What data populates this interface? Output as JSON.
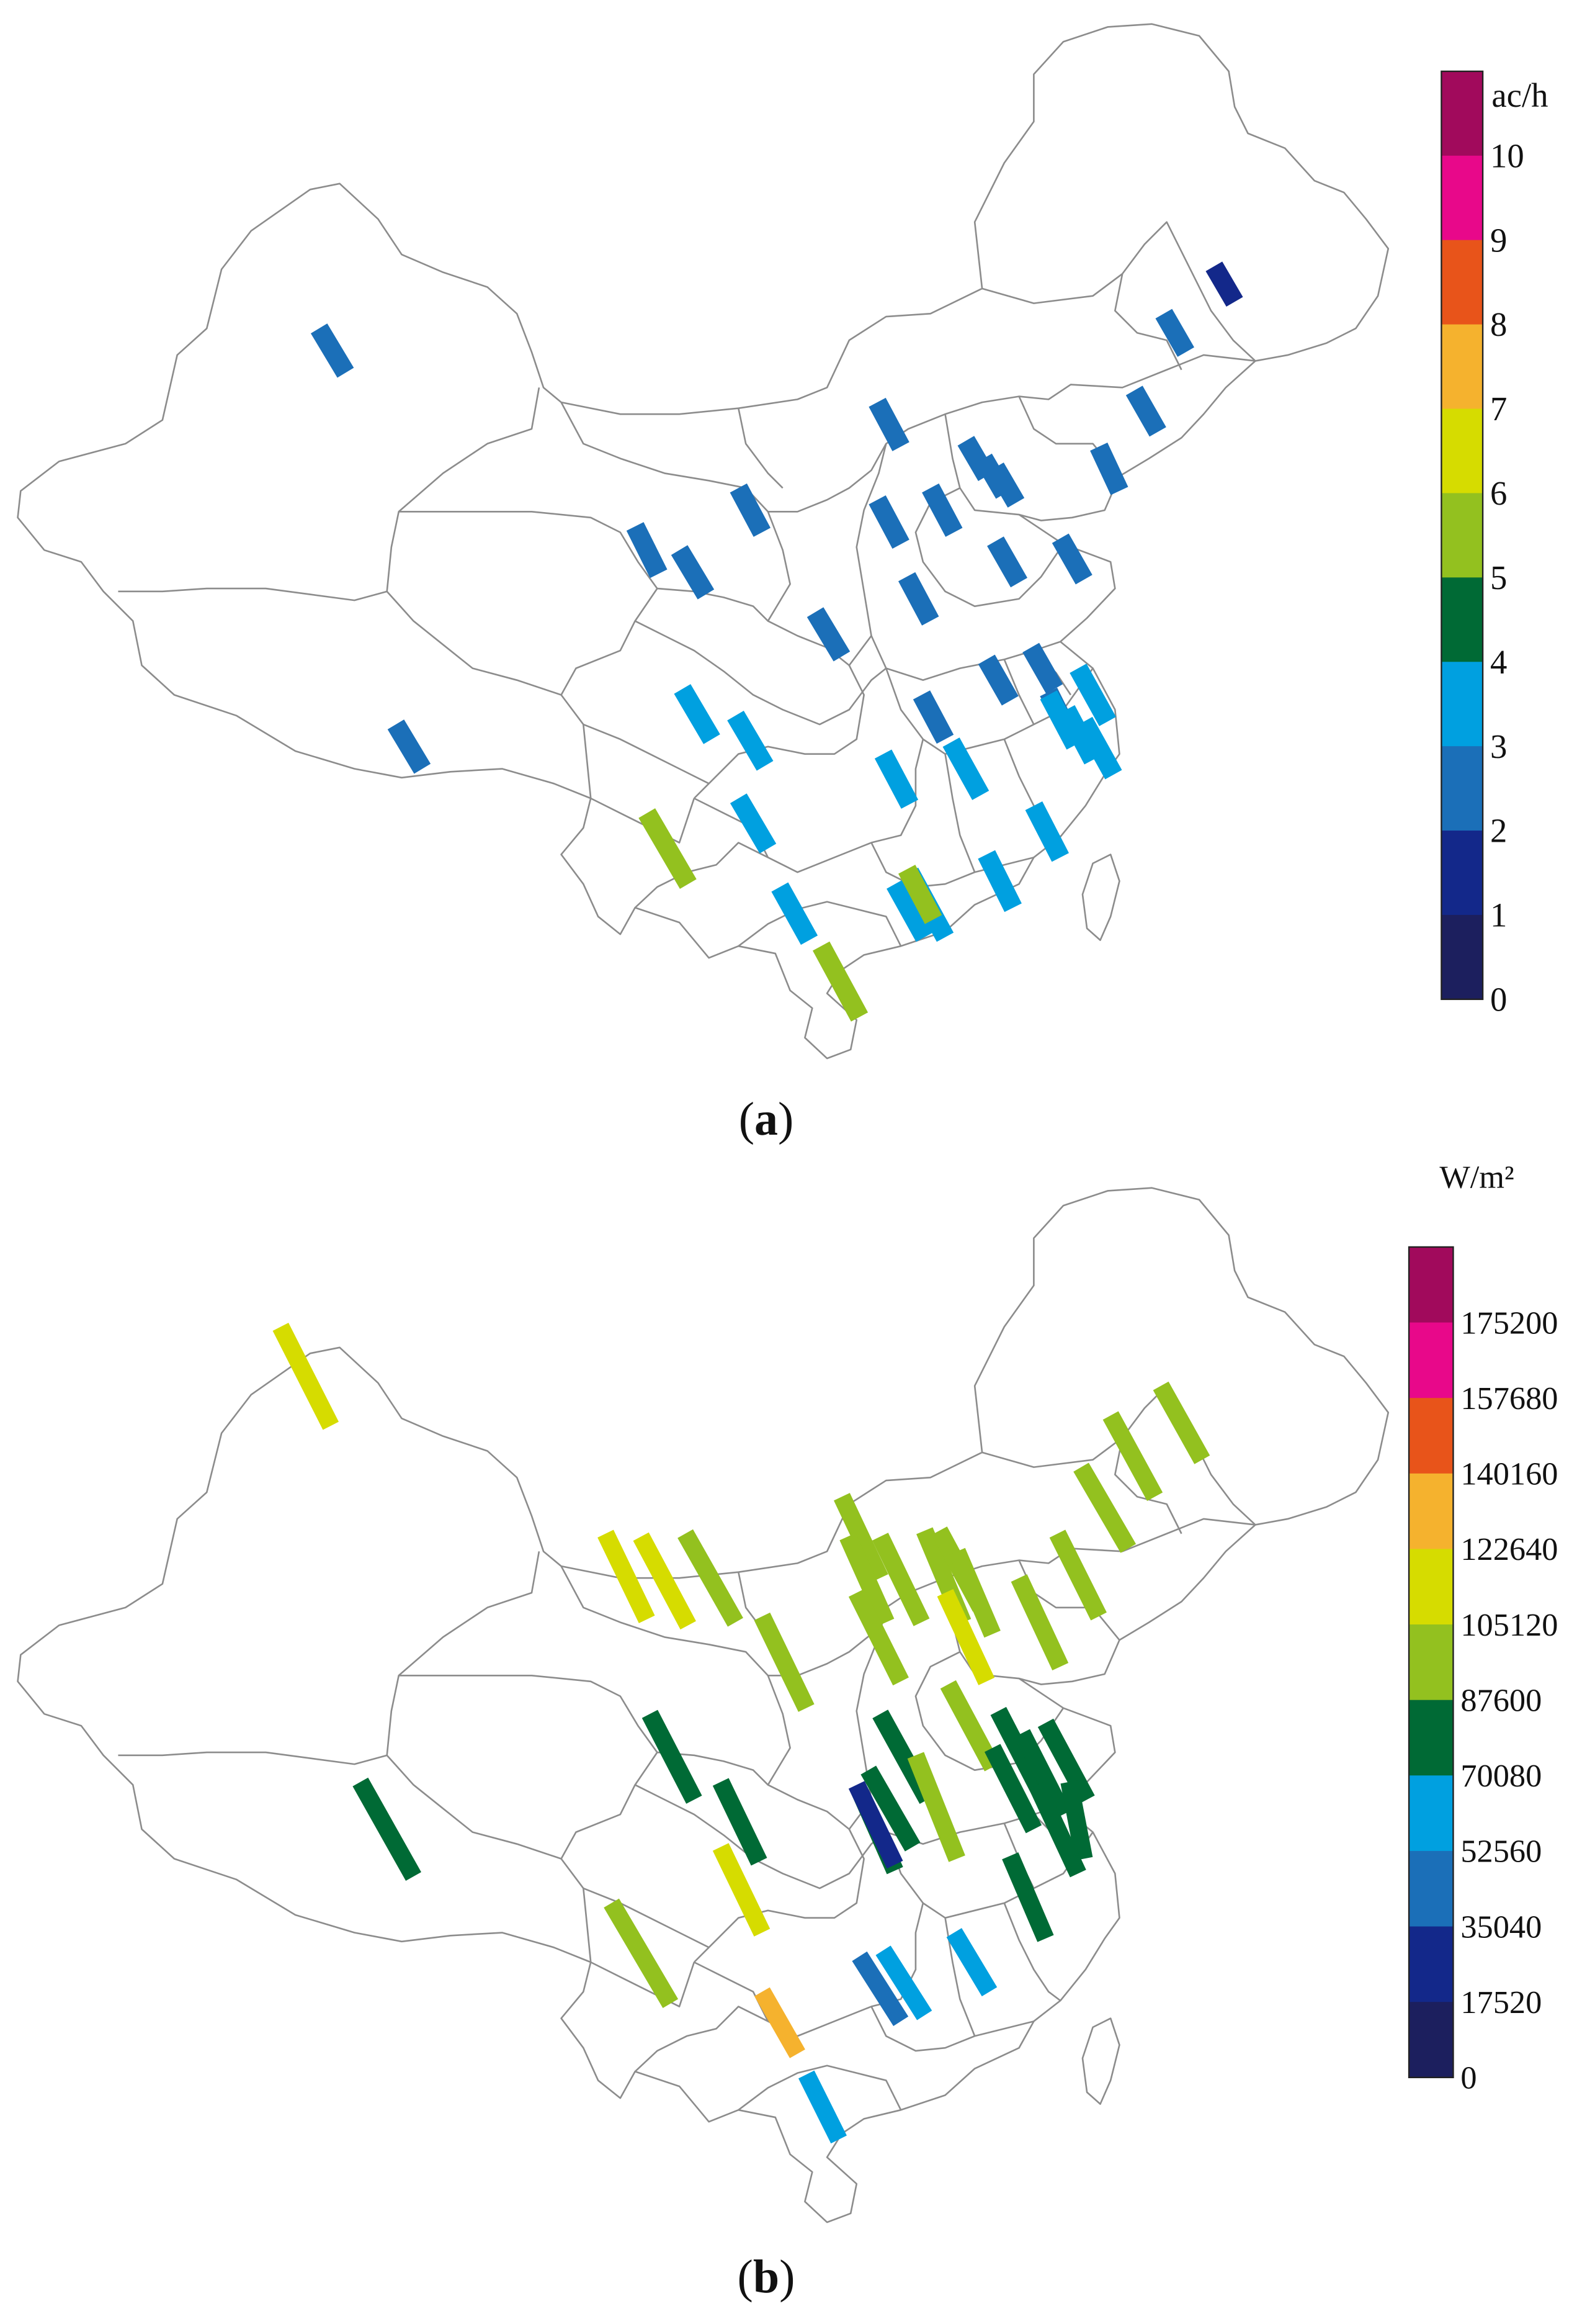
{
  "panels": [
    {
      "id": "a",
      "label_open": "(",
      "label_letter": "a",
      "label_close": ")",
      "legend": {
        "unit": "ac/h",
        "ticks": [
          "10",
          "9",
          "8",
          "7",
          "6",
          "5",
          "4",
          "3",
          "2",
          "1",
          "0"
        ],
        "colors": [
          "#a10a5c",
          "#e8088a",
          "#e8541a",
          "#f5b22e",
          "#d6dc00",
          "#93c11f",
          "#006a35",
          "#00a0e0",
          "#1b6fb8",
          "#13288a",
          "#1c1f5e"
        ]
      },
      "bar_values": [
        3,
        2,
        3,
        3,
        3,
        3,
        3,
        3,
        3,
        3,
        3,
        3,
        3,
        3,
        3,
        3,
        3,
        3,
        3,
        3,
        3,
        3,
        3,
        4,
        4,
        4,
        4,
        4,
        4,
        4,
        4,
        4,
        4,
        4,
        6,
        4,
        6,
        6,
        4,
        4
      ]
    },
    {
      "id": "b",
      "label_open": "(",
      "label_letter": "b",
      "label_close": ")",
      "legend": {
        "unit": "W/m²",
        "ticks": [
          "175200",
          "157680",
          "140160",
          "122640",
          "105120",
          "87600",
          "70080",
          "52560",
          "35040",
          "17520",
          "0"
        ],
        "colors": [
          "#a10a5c",
          "#e8088a",
          "#e8541a",
          "#f5b22e",
          "#d6dc00",
          "#93c11f",
          "#006a35",
          "#00a0e0",
          "#1b6fb8",
          "#13288a",
          "#1c1f5e"
        ]
      },
      "bar_values": [
        115000,
        95000,
        95000,
        95000,
        95000,
        95000,
        95000,
        95000,
        95000,
        95000,
        95000,
        95000,
        115000,
        115000,
        115000,
        95000,
        95000,
        95000,
        95000,
        80000,
        80000,
        95000,
        80000,
        80000,
        80000,
        80000,
        80000,
        80000,
        80000,
        80000,
        80000,
        80000,
        80000,
        115000,
        95000,
        132000,
        40000,
        60000,
        60000,
        60000,
        25000
      ]
    }
  ]
}
